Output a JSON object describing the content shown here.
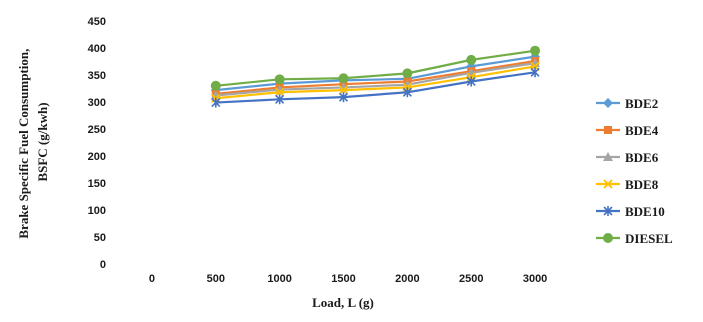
{
  "chart_data": {
    "type": "line",
    "xlabel": "Load, L (g)",
    "ylabel_lines": [
      "Brake Specific Fuel Consumption,",
      "BSFC  (g/kwh)"
    ],
    "categories": [
      "0",
      "500",
      "1000",
      "1500",
      "2000",
      "2500",
      "3000"
    ],
    "ylim": [
      0,
      450
    ],
    "yticks": [
      0,
      50,
      100,
      150,
      200,
      250,
      300,
      350,
      400,
      450
    ],
    "grid": false,
    "legend_position": "right",
    "series": [
      {
        "name": "BDE2",
        "color": "#5B9BD5",
        "marker": "diamond",
        "values": [
          null,
          322,
          334,
          340,
          343,
          366,
          384
        ]
      },
      {
        "name": "BDE4",
        "color": "#ED7D31",
        "marker": "square",
        "values": [
          null,
          315,
          327,
          333,
          338,
          357,
          376
        ]
      },
      {
        "name": "BDE6",
        "color": "#A5A5A5",
        "marker": "triangle",
        "values": [
          null,
          312,
          323,
          327,
          332,
          354,
          372
        ]
      },
      {
        "name": "BDE8",
        "color": "#FFC000",
        "marker": "x",
        "values": [
          null,
          307,
          318,
          322,
          327,
          346,
          366
        ]
      },
      {
        "name": "BDE10",
        "color": "#4472C4",
        "marker": "star",
        "values": [
          null,
          299,
          305,
          309,
          318,
          338,
          355
        ]
      },
      {
        "name": "DIESEL",
        "color": "#70AD47",
        "marker": "circle",
        "values": [
          null,
          330,
          342,
          344,
          353,
          378,
          395
        ]
      }
    ]
  }
}
